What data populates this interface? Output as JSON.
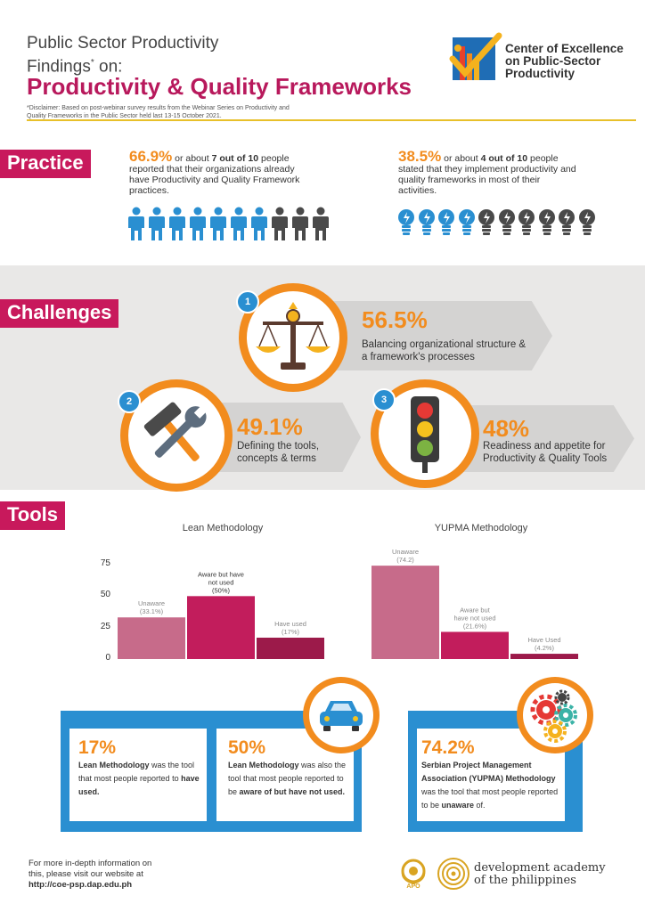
{
  "header": {
    "title_line1": "Public  Sector Productivity",
    "title_line2_pre": "Findings",
    "title_line2_sup": "*",
    "title_line2_post": " on:",
    "subtitle": "Productivity & Quality Frameworks",
    "disclaimer": "*Disclaimer: Based on post-webinar survey results from the Webinar Series on Productivity and Quality Frameworks in the Public Sector held last 13-15 October 2021.",
    "logo_text": "Center of Excellence on Public-Sector Productivity",
    "colors": {
      "accent": "#b8195c",
      "orange": "#f28c1e",
      "blue": "#2a8fd1",
      "gold": "#e8c02a"
    }
  },
  "practice": {
    "label": "Practice",
    "left": {
      "pct": "66.9%",
      "text_pre": " or about ",
      "count": "7  out of 10",
      "text_post": " people reported that their organizations already have Productivity and Quality Framework practices.",
      "icon": "person-icon",
      "highlighted": 7,
      "total": 10
    },
    "right": {
      "pct": "38.5%",
      "text_pre": " or about ",
      "count": "4 out of 10",
      "text_post": " people stated that they implement productivity and quality frameworks in most of their activities.",
      "icon": "lightbulb-icon",
      "highlighted": 4,
      "total": 10
    }
  },
  "challenges": {
    "label": "Challenges",
    "items": [
      {
        "num": "1",
        "pct": "56.5%",
        "text1": "Balancing organizational structure &",
        "text2": "a framework's processes",
        "icon": "scale-icon"
      },
      {
        "num": "2",
        "pct": "49.1%",
        "text1": "Defining the tools,",
        "text2": "concepts & terms",
        "icon": "tools-icon"
      },
      {
        "num": "3",
        "pct": "48%",
        "text1": "Readiness and appetite for",
        "text2": "Productivity & Quality Tools",
        "icon": "traffic-light-icon"
      }
    ]
  },
  "tools": {
    "label": "Tools",
    "yticks": [
      "75",
      "50",
      "25",
      "0"
    ]
  },
  "chart_data": [
    {
      "type": "bar",
      "title": "Lean Methodology",
      "categories": [
        "Unaware",
        "Aware but have not used",
        "Have used"
      ],
      "values": [
        33.1,
        50,
        17
      ],
      "labels": [
        "Unaware\n(33.1%)",
        "Aware but have\nnot used\n(50%)",
        "Have used\n(17%)"
      ],
      "colors": [
        "#c76b8a",
        "#c21d5c",
        "#9c1a4a"
      ],
      "ylim": [
        0,
        75
      ]
    },
    {
      "type": "bar",
      "title": "YUPMA Methodology",
      "categories": [
        "Unaware",
        "Aware but have not used",
        "Have Used"
      ],
      "values": [
        74.2,
        21.6,
        4.2
      ],
      "labels": [
        "Unaware\n(74.2)",
        "Aware but\nhave not used\n(21.6%)",
        "Have Used\n(4.2%)"
      ],
      "colors": [
        "#c76b8a",
        "#c21d5c",
        "#9c1a4a"
      ],
      "ylim": [
        0,
        75
      ]
    }
  ],
  "cards": {
    "c1": {
      "pct": "17%",
      "b1": "Lean Methodology",
      "t1": " was the tool that most people reported to ",
      "b2": "have used."
    },
    "c2": {
      "pct": "50%",
      "b1": "Lean Methodology",
      "t1": " was also the tool that most people reported to be ",
      "b2": "aware of but have not used."
    },
    "c3": {
      "pct": "74.2%",
      "b1": "Serbian Project Management Association (YUPMA) Methodology",
      "t1": " was the tool that most people reported to be ",
      "b2": "unaware",
      "t2": " of."
    }
  },
  "footer": {
    "line1": "For more in-depth information on",
    "line2": "this, please visit our website at",
    "url": "http://coe-psp.dap.edu.ph",
    "dap1": "development academy",
    "dap2": "of the philippines",
    "apo": "APO"
  }
}
